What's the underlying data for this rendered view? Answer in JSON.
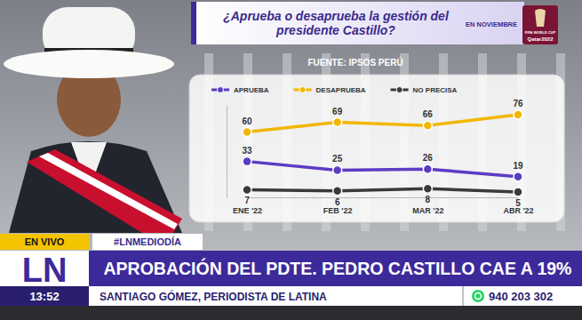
{
  "chart_data": {
    "type": "line",
    "title": "¿Aprueba o desaprueba la gestión del presidente Castillo?",
    "subtitle": "FUENTE: IPSOS PERÚ",
    "categories": [
      "ENE '22",
      "FEB '22",
      "MAR '22",
      "ABR '22"
    ],
    "series": [
      {
        "name": "APRUEBA",
        "color": "#5b3cc4",
        "values": [
          33,
          25,
          26,
          19
        ]
      },
      {
        "name": "DESAPRUEBA",
        "color": "#f2b705",
        "values": [
          60,
          69,
          66,
          76
        ]
      },
      {
        "name": "NO PRECISA",
        "color": "#3a3a3a",
        "values": [
          7,
          6,
          8,
          5
        ]
      }
    ],
    "ylim": [
      0,
      85
    ],
    "tick_labels": "x",
    "data_labels": true,
    "marker": "circle",
    "legend": "top"
  },
  "broadcast": {
    "date_tag": "EN NOVIEMBRE",
    "logo": [
      "FIFA WORLD CUP",
      "Qatar2022"
    ],
    "live": "EN VIVO",
    "hashtag": "#LNMEDIODÍA",
    "channel": "LN",
    "headline": "APROBACIÓN DEL PDTE. PEDRO CASTILLO CAE A 19%",
    "time": "13:52",
    "reporter": "SANTIAGO GÓMEZ, PERIODISTA DE LATINA",
    "phone": "940 203 302"
  }
}
